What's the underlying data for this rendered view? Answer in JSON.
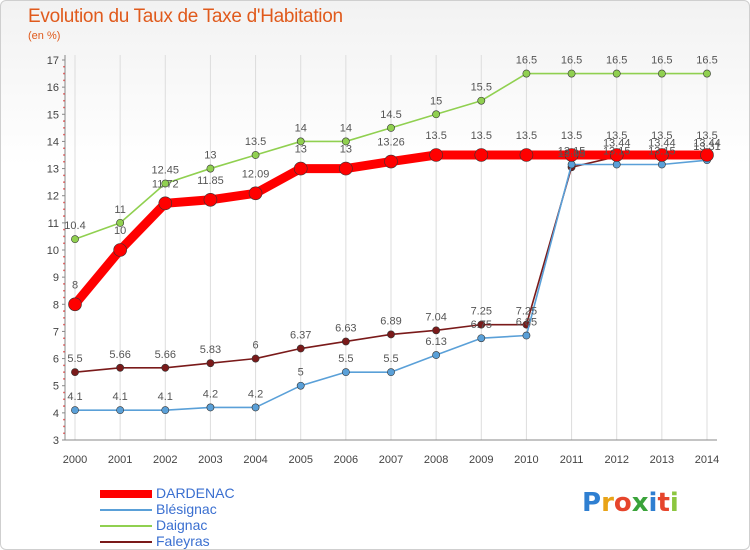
{
  "title": "Evolution du Taux de Taxe d'Habitation",
  "subtitle": "(en %)",
  "brand": {
    "letters": [
      "P",
      "r",
      "o",
      "x",
      "i",
      "t",
      "i"
    ],
    "colors": [
      "#2f7fd1",
      "#e8a317",
      "#e6452c",
      "#3aa33a",
      "#2f7fd1",
      "#e6452c",
      "#8cc63f"
    ]
  },
  "chart_data": {
    "type": "line",
    "x": [
      2000,
      2001,
      2002,
      2003,
      2004,
      2005,
      2006,
      2007,
      2008,
      2009,
      2010,
      2011,
      2012,
      2013,
      2014
    ],
    "ylim": [
      3,
      17
    ],
    "yticks": [
      3,
      4,
      5,
      6,
      7,
      8,
      9,
      10,
      11,
      12,
      13,
      14,
      15,
      16,
      17
    ],
    "grid": "vertical",
    "legend_position": "bottom-left",
    "series": [
      {
        "name": "DARDENAC",
        "color": "#ff0000",
        "values": [
          8,
          10,
          11.72,
          11.85,
          12.09,
          13,
          13,
          13.26,
          13.5,
          13.5,
          13.5,
          13.5,
          13.5,
          13.5,
          13.5
        ],
        "labels": [
          "8",
          "10",
          "11.72",
          "11.85",
          "12.09",
          "13",
          "13",
          "13.26",
          "13.5",
          "13.5",
          "13.5",
          "13.5",
          "13.5",
          "13.5",
          "13.5"
        ]
      },
      {
        "name": "Blésignac",
        "color": "#5aa0d8",
        "values": [
          4.1,
          4.1,
          4.1,
          4.2,
          4.2,
          5,
          5.5,
          5.5,
          6.13,
          6.75,
          6.85,
          13.15,
          13.15,
          13.15,
          13.31
        ],
        "labels": [
          "4.1",
          "4.1",
          "4.1",
          "4.2",
          "4.2",
          "5",
          "5.5",
          "5.5",
          "6.13",
          "6.75",
          "6.85",
          "13.15",
          "13.15",
          "13.15",
          "13.31"
        ]
      },
      {
        "name": "Daignac",
        "color": "#90d050",
        "values": [
          10.4,
          11,
          12.45,
          13,
          13.5,
          14,
          14,
          14.5,
          15,
          15.5,
          16.5,
          16.5,
          16.5,
          16.5,
          16.5
        ],
        "labels": [
          "10.4",
          "11",
          "12.45",
          "13",
          "13.5",
          "14",
          "14",
          "14.5",
          "15",
          "15.5",
          "16.5",
          "16.5",
          "16.5",
          "16.5",
          "16.5"
        ]
      },
      {
        "name": "Faleyras",
        "color": "#7a1a1a",
        "values": [
          5.5,
          5.66,
          5.66,
          5.83,
          6,
          6.37,
          6.63,
          6.89,
          7.04,
          7.25,
          7.25,
          13.05,
          13.44,
          13.44,
          13.44
        ],
        "labels": [
          "5.5",
          "5.66",
          "5.66",
          "5.83",
          "6",
          "6.37",
          "6.63",
          "6.89",
          "7.04",
          "7.25",
          "7.25",
          "13.05",
          "13.44",
          "13.44",
          "13.44"
        ]
      }
    ]
  }
}
